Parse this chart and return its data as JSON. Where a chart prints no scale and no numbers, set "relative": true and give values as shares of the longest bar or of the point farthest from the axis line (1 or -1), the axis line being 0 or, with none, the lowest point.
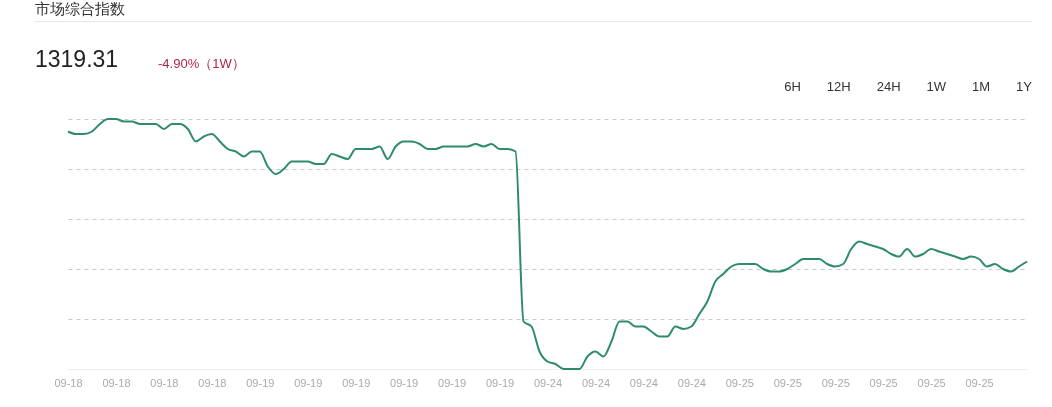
{
  "chart_data": {
    "type": "line",
    "title": "市场综合指数",
    "relative": true,
    "grid": "y",
    "legend": false,
    "annotations": [
      "1319.31",
      "-4.90%（1W）",
      "6H",
      "12H",
      "24H",
      "1W",
      "1M",
      "1Y"
    ],
    "categories": [
      "09-18",
      null,
      null,
      null,
      null,
      null,
      "09-18",
      null,
      null,
      null,
      null,
      null,
      "09-18",
      null,
      null,
      null,
      null,
      null,
      "09-18",
      null,
      null,
      null,
      null,
      null,
      "09-19",
      null,
      null,
      null,
      null,
      null,
      "09-19",
      null,
      null,
      null,
      null,
      null,
      "09-19",
      null,
      null,
      null,
      null,
      null,
      "09-19",
      null,
      null,
      null,
      null,
      null,
      "09-19",
      null,
      null,
      null,
      null,
      null,
      "09-19",
      null,
      null,
      null,
      null,
      null,
      "09-24",
      null,
      null,
      null,
      null,
      null,
      "09-24",
      null,
      null,
      null,
      null,
      null,
      "09-24",
      null,
      null,
      null,
      null,
      null,
      "09-24",
      null,
      null,
      null,
      null,
      null,
      "09-25",
      null,
      null,
      null,
      null,
      null,
      "09-25",
      null,
      null,
      null,
      null,
      null,
      "09-25",
      null,
      null,
      null,
      null,
      null,
      "09-25",
      null,
      null,
      null,
      null,
      null,
      "09-25",
      null,
      null,
      null,
      null,
      null,
      "09-25",
      null,
      null,
      null,
      null,
      null,
      null
    ],
    "series": [
      {
        "color": "#2e8b6e",
        "values": [
          0.95,
          0.94,
          0.94,
          0.95,
          0.98,
          1,
          1,
          0.99,
          0.99,
          0.98,
          0.98,
          0.98,
          0.96,
          0.98,
          0.98,
          0.96,
          0.91,
          0.93,
          0.94,
          0.91,
          0.88,
          0.87,
          0.85,
          0.87,
          0.87,
          0.81,
          0.78,
          0.8,
          0.83,
          0.83,
          0.83,
          0.82,
          0.82,
          0.86,
          0.85,
          0.84,
          0.88,
          0.88,
          0.88,
          0.89,
          0.84,
          0.89,
          0.91,
          0.91,
          0.9,
          0.88,
          0.88,
          0.89,
          0.89,
          0.89,
          0.89,
          0.9,
          0.89,
          0.9,
          0.88,
          0.88,
          0.87,
          0.19,
          0.17,
          0.07,
          0.03,
          0.02,
          0,
          0,
          0,
          0.05,
          0.07,
          0.05,
          0.11,
          0.19,
          0.19,
          0.17,
          0.17,
          0.15,
          0.13,
          0.13,
          0.17,
          0.16,
          0.17,
          0.22,
          0.27,
          0.35,
          0.38,
          0.41,
          0.42,
          0.42,
          0.42,
          0.4,
          0.39,
          0.39,
          0.4,
          0.42,
          0.44,
          0.44,
          0.44,
          0.42,
          0.41,
          0.42,
          0.48,
          0.51,
          0.5,
          0.49,
          0.48,
          0.46,
          0.45,
          0.48,
          0.45,
          0.46,
          0.48,
          0.47,
          0.46,
          0.45,
          0.44,
          0.45,
          0.44,
          0.41,
          0.42,
          0.4,
          0.39,
          0.41,
          0.43
        ]
      }
    ]
  }
}
